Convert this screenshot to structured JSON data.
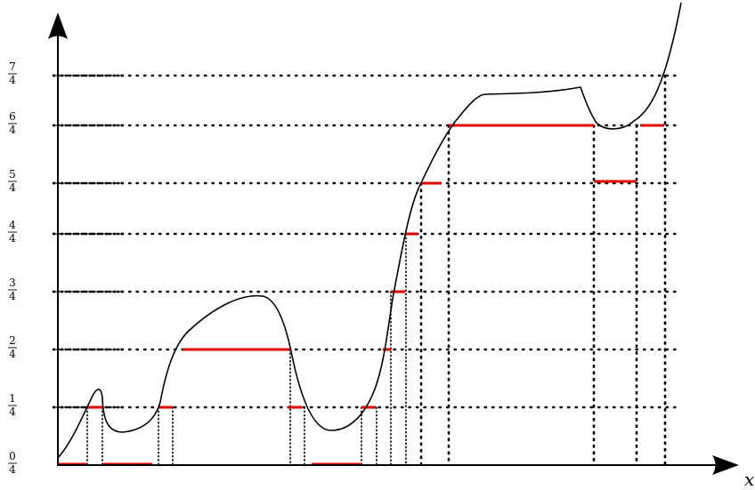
{
  "axis": {
    "x_label": "x"
  },
  "levels": [
    {
      "num": "0",
      "den": "4",
      "value": 0.0
    },
    {
      "num": "1",
      "den": "4",
      "value": 0.25
    },
    {
      "num": "2",
      "den": "4",
      "value": 0.5
    },
    {
      "num": "3",
      "den": "4",
      "value": 0.75
    },
    {
      "num": "4",
      "den": "4",
      "value": 1.0
    },
    {
      "num": "5",
      "den": "4",
      "value": 1.25
    },
    {
      "num": "6",
      "den": "4",
      "value": 1.5
    },
    {
      "num": "7",
      "den": "4",
      "value": 1.75
    }
  ],
  "colors": {
    "curve": "#000000",
    "level_segment": "#e00000",
    "guide": "#000000"
  }
}
